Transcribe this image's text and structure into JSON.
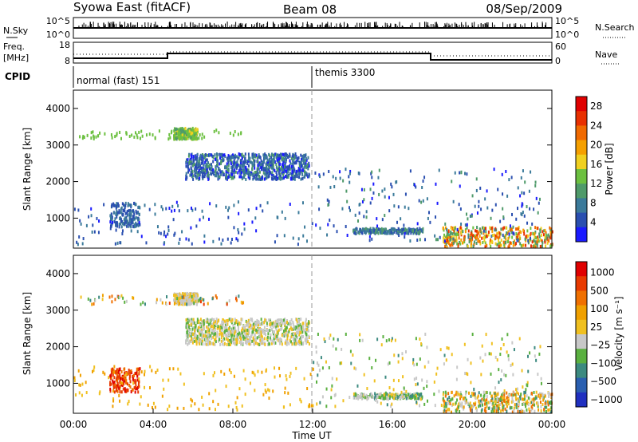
{
  "header": {
    "radar": "Syowa East (fitACF)",
    "beam": "Beam 08",
    "date": "08/Sep/2009"
  },
  "top_panels": {
    "nsky_label": "N.Sky",
    "nsky_ticks": [
      "10^5",
      "10^0"
    ],
    "nsearch_label": "N.Search",
    "nsearch_ticks": [
      "10^5",
      "10^0"
    ],
    "freq_label": "Freq.",
    "freq_unit": "[MHz]",
    "freq_ticks": [
      "18",
      "8"
    ],
    "nave_label": "Nave",
    "nave_ticks": [
      "60",
      "0"
    ],
    "cpid_label": "CPID",
    "cpid_modes": [
      "normal (fast) 151",
      "themis 3300"
    ]
  },
  "chart_data": [
    {
      "type": "heatmap",
      "ylabel": "Slant Range [km]",
      "yticks": [
        "1000",
        "2000",
        "3000",
        "4000"
      ],
      "ylim": [
        180,
        4500
      ],
      "xlim": [
        0,
        24
      ],
      "colorbar_label": "Power [dB]",
      "colorbar_ticks": [
        "4",
        "8",
        "12",
        "16",
        "20",
        "24",
        "28"
      ],
      "colorbar_colors": [
        "#1a1aff",
        "#2a4fb0",
        "#3b7a9a",
        "#4f9a6a",
        "#6cc040",
        "#f0d020",
        "#f5a000",
        "#f06a00",
        "#e83000",
        "#e00000"
      ]
    },
    {
      "type": "heatmap",
      "ylabel": "Slant Range [km]",
      "yticks": [
        "1000",
        "2000",
        "3000",
        "4000"
      ],
      "ylim": [
        180,
        4500
      ],
      "xlim": [
        0,
        24
      ],
      "xticks": [
        "00:00",
        "04:00",
        "08:00",
        "12:00",
        "16:00",
        "20:00",
        "00:00"
      ],
      "xlabel": "Time UT",
      "colorbar_label": "Velocity [m s⁻¹]",
      "colorbar_ticks": [
        "1000",
        "500",
        "100",
        "25",
        "−25",
        "−100",
        "−500",
        "−1000"
      ],
      "colorbar_colors": [
        "#2030c0",
        "#2a5fb0",
        "#3c8a80",
        "#5ab040",
        "#c8c8c8",
        "#f0c020",
        "#f0a000",
        "#f07000",
        "#e83a00",
        "#e00000"
      ]
    }
  ]
}
